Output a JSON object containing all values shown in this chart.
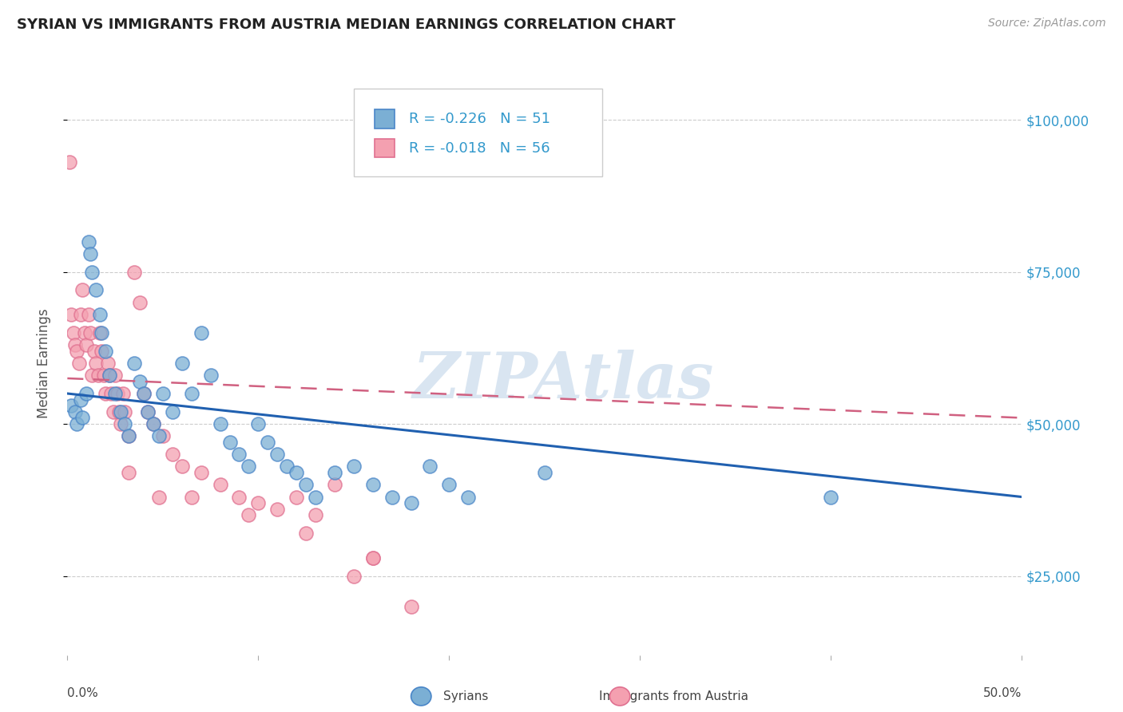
{
  "title": "SYRIAN VS IMMIGRANTS FROM AUSTRIA MEDIAN EARNINGS CORRELATION CHART",
  "source": "Source: ZipAtlas.com",
  "ylabel": "Median Earnings",
  "yticks": [
    25000,
    50000,
    75000,
    100000
  ],
  "ytick_labels": [
    "$25,000",
    "$50,000",
    "$75,000",
    "$100,000"
  ],
  "ylim": [
    12000,
    108000
  ],
  "xlim": [
    0.0,
    50.0
  ],
  "legend_syrian_r": "R = -0.226",
  "legend_syrian_n": "N = 51",
  "legend_austria_r": "R = -0.018",
  "legend_austria_n": "N = 56",
  "blue_dot_color": "#7bafd4",
  "blue_edge_color": "#4a86c8",
  "pink_dot_color": "#f4a0b0",
  "pink_edge_color": "#e07090",
  "blue_line_color": "#2060b0",
  "pink_line_color": "#d06080",
  "watermark": "ZIPAtlas",
  "watermark_color": "#c5d8ea",
  "grid_color": "#cccccc",
  "right_tick_color": "#3399cc",
  "syrians_x": [
    0.2,
    0.4,
    0.5,
    0.7,
    0.8,
    1.0,
    1.1,
    1.2,
    1.3,
    1.5,
    1.7,
    1.8,
    2.0,
    2.2,
    2.5,
    2.8,
    3.0,
    3.2,
    3.5,
    3.8,
    4.0,
    4.2,
    4.5,
    4.8,
    5.0,
    5.5,
    6.0,
    6.5,
    7.0,
    7.5,
    8.0,
    8.5,
    9.0,
    9.5,
    10.0,
    10.5,
    11.0,
    11.5,
    12.0,
    12.5,
    13.0,
    14.0,
    15.0,
    16.0,
    17.0,
    18.0,
    19.0,
    20.0,
    21.0,
    25.0,
    40.0
  ],
  "syrians_y": [
    53000,
    52000,
    50000,
    54000,
    51000,
    55000,
    80000,
    78000,
    75000,
    72000,
    68000,
    65000,
    62000,
    58000,
    55000,
    52000,
    50000,
    48000,
    60000,
    57000,
    55000,
    52000,
    50000,
    48000,
    55000,
    52000,
    60000,
    55000,
    65000,
    58000,
    50000,
    47000,
    45000,
    43000,
    50000,
    47000,
    45000,
    43000,
    42000,
    40000,
    38000,
    42000,
    43000,
    40000,
    38000,
    37000,
    43000,
    40000,
    38000,
    42000,
    38000
  ],
  "austria_x": [
    0.1,
    0.2,
    0.3,
    0.4,
    0.5,
    0.6,
    0.7,
    0.8,
    0.9,
    1.0,
    1.1,
    1.2,
    1.3,
    1.4,
    1.5,
    1.6,
    1.7,
    1.8,
    1.9,
    2.0,
    2.1,
    2.2,
    2.3,
    2.4,
    2.5,
    2.6,
    2.7,
    2.8,
    2.9,
    3.0,
    3.2,
    3.5,
    3.8,
    4.0,
    4.2,
    4.5,
    5.0,
    5.5,
    6.0,
    7.0,
    8.0,
    9.0,
    10.0,
    11.0,
    12.0,
    13.0,
    14.0,
    15.0,
    16.0,
    18.0,
    3.2,
    4.8,
    6.5,
    9.5,
    12.5,
    16.0
  ],
  "austria_y": [
    93000,
    68000,
    65000,
    63000,
    62000,
    60000,
    68000,
    72000,
    65000,
    63000,
    68000,
    65000,
    58000,
    62000,
    60000,
    58000,
    65000,
    62000,
    58000,
    55000,
    60000,
    58000,
    55000,
    52000,
    58000,
    55000,
    52000,
    50000,
    55000,
    52000,
    48000,
    75000,
    70000,
    55000,
    52000,
    50000,
    48000,
    45000,
    43000,
    42000,
    40000,
    38000,
    37000,
    36000,
    38000,
    35000,
    40000,
    25000,
    28000,
    20000,
    42000,
    38000,
    38000,
    35000,
    32000,
    28000
  ],
  "blue_trendline_x0": 0.0,
  "blue_trendline_y0": 55000,
  "blue_trendline_x1": 50.0,
  "blue_trendline_y1": 38000,
  "pink_trendline_x0": 0.0,
  "pink_trendline_y0": 57500,
  "pink_trendline_x1": 50.0,
  "pink_trendline_y1": 51000
}
